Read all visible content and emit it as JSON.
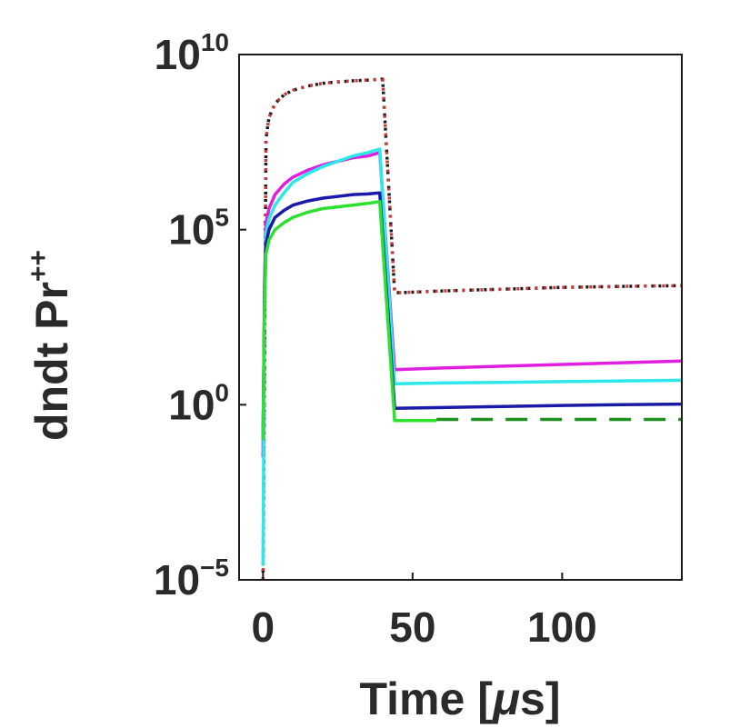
{
  "chart_data": {
    "type": "line",
    "xlabel_prefix": "Time [",
    "xlabel_unit": "μ",
    "xlabel_suffix": "s]",
    "ylabel": "dndt Pr",
    "ylabel_sup": "++",
    "xlim": [
      -8,
      140
    ],
    "ylim_exp": [
      -5,
      10
    ],
    "y_scale": "log",
    "grid": false,
    "x_ticks": [
      {
        "value": 0,
        "label": "0"
      },
      {
        "value": 50,
        "label": "50"
      },
      {
        "value": 100,
        "label": "100"
      }
    ],
    "y_ticks": [
      {
        "exp": -5,
        "base": "10",
        "sup": "−5"
      },
      {
        "exp": 0,
        "base": "10",
        "sup": "0"
      },
      {
        "exp": 5,
        "base": "10",
        "sup": "5"
      },
      {
        "exp": 10,
        "base": "10",
        "sup": "10"
      }
    ],
    "series": [
      {
        "color": "#1b1b1b",
        "dash": "3,5",
        "x": [
          0,
          0.5,
          1,
          2,
          4,
          7,
          10,
          15,
          20,
          25,
          30,
          35,
          40,
          44,
          46,
          60,
          80,
          100,
          120,
          140
        ],
        "log_y": [
          -5,
          1,
          7.6,
          8.2,
          8.6,
          8.85,
          8.98,
          9.1,
          9.18,
          9.22,
          9.25,
          9.27,
          9.3,
          3.2,
          3.2,
          3.25,
          3.3,
          3.35,
          3.38,
          3.4
        ]
      },
      {
        "color": "#c43a3a",
        "dash": "3,7",
        "x": [
          0,
          0.5,
          1,
          2,
          4,
          7,
          10,
          15,
          20,
          25,
          30,
          35,
          40,
          44,
          46,
          60,
          80,
          100,
          120,
          140
        ],
        "log_y": [
          -5,
          1,
          7.6,
          8.2,
          8.6,
          8.85,
          8.98,
          9.1,
          9.18,
          9.22,
          9.25,
          9.27,
          9.3,
          3.2,
          3.2,
          3.25,
          3.3,
          3.35,
          3.38,
          3.4
        ]
      },
      {
        "color": "#e01ee0",
        "dash": "",
        "x": [
          0,
          0.5,
          1,
          2,
          4,
          7,
          10,
          15,
          20,
          25,
          30,
          35,
          39,
          44,
          60,
          80,
          100,
          120,
          140
        ],
        "log_y": [
          -1.5,
          3.5,
          5.2,
          5.6,
          6.0,
          6.3,
          6.5,
          6.7,
          6.85,
          6.95,
          7.05,
          7.1,
          7.2,
          1.0,
          1.05,
          1.1,
          1.15,
          1.2,
          1.25
        ]
      },
      {
        "color": "#2ce8e8",
        "dash": "",
        "x": [
          0,
          0.5,
          1,
          2,
          4,
          7,
          10,
          15,
          20,
          25,
          30,
          35,
          39,
          44,
          60,
          80,
          100,
          120,
          140
        ],
        "log_y": [
          -4.6,
          3.0,
          4.9,
          5.3,
          5.7,
          6.05,
          6.35,
          6.6,
          6.8,
          6.95,
          7.1,
          7.2,
          7.3,
          0.6,
          0.62,
          0.64,
          0.66,
          0.68,
          0.7
        ]
      },
      {
        "color": "#1a1aa8",
        "dash": "",
        "x": [
          0,
          0.5,
          1,
          2,
          4,
          7,
          10,
          15,
          20,
          25,
          30,
          35,
          39,
          44,
          60,
          80,
          100,
          120,
          140
        ],
        "log_y": [
          -1.0,
          3.0,
          4.6,
          5.0,
          5.35,
          5.55,
          5.7,
          5.82,
          5.9,
          5.95,
          6.0,
          6.02,
          6.05,
          -0.1,
          -0.08,
          -0.05,
          -0.02,
          0.0,
          0.02
        ]
      },
      {
        "color": "#2ee02e",
        "dash": "",
        "x": [
          0,
          0.5,
          1,
          2,
          4,
          7,
          10,
          15,
          20,
          25,
          30,
          35,
          39,
          44,
          58
        ],
        "log_y": [
          -1.0,
          2.8,
          4.3,
          4.7,
          5.0,
          5.2,
          5.35,
          5.5,
          5.6,
          5.65,
          5.7,
          5.75,
          5.8,
          -0.45,
          -0.45
        ]
      },
      {
        "color": "#1f8f1f",
        "dash": "24,14",
        "x": [
          58,
          80,
          100,
          120,
          140
        ],
        "log_y": [
          -0.42,
          -0.42,
          -0.42,
          -0.42,
          -0.42
        ]
      }
    ]
  }
}
